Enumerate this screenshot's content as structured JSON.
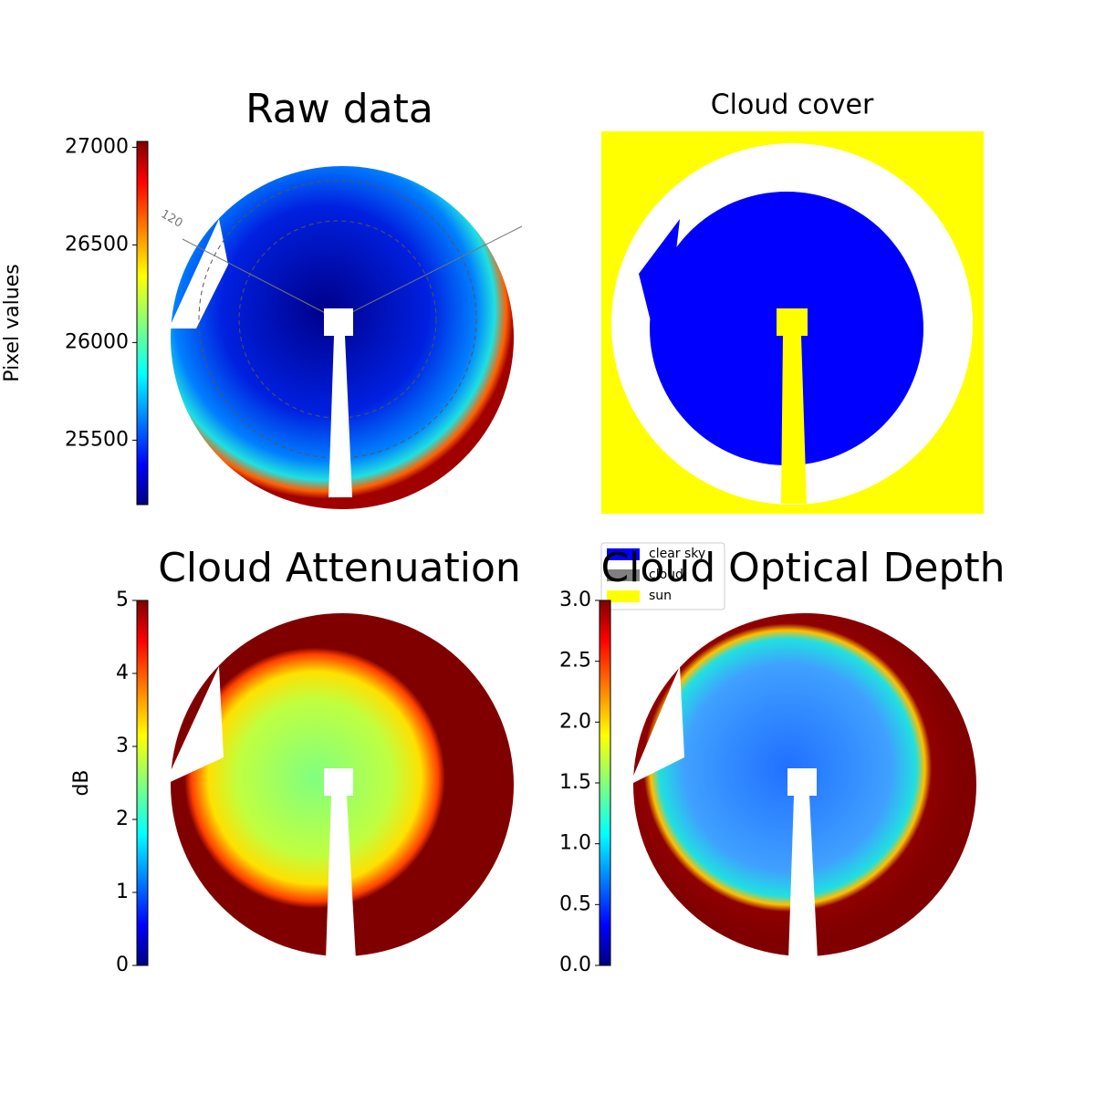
{
  "chart_data": [
    {
      "type": "image",
      "title": "Raw data",
      "annotations": [
        "120"
      ],
      "colorbar": {
        "label": "Pixel values",
        "lim": [
          25170,
          27030
        ],
        "ticks": [
          25500,
          26000,
          26500,
          27000
        ]
      }
    },
    {
      "type": "image",
      "title": "Cloud cover",
      "series": [
        {
          "name": "clear sky",
          "color": "#0000ff"
        },
        {
          "name": "cloud",
          "color": "#808080"
        },
        {
          "name": "sun",
          "color": "#ffff00"
        }
      ]
    },
    {
      "type": "image",
      "title": "Cloud Attenuation",
      "colorbar": {
        "label": "dB",
        "lim": [
          0,
          5
        ],
        "ticks": [
          0,
          1,
          2,
          3,
          4,
          5
        ]
      }
    },
    {
      "type": "image",
      "title": "Cloud Optical Depth",
      "colorbar": {
        "lim": [
          0,
          3
        ],
        "ticks": [
          {
            "value": 0,
            "label": "0.0"
          },
          {
            "value": 0.5,
            "label": "0.5"
          },
          {
            "value": 1,
            "label": "1.0"
          },
          {
            "value": 1.5,
            "label": "1.5"
          },
          {
            "value": 2,
            "label": "2.0"
          },
          {
            "value": 2.5,
            "label": "2.5"
          },
          {
            "value": 3,
            "label": "3.0"
          }
        ]
      }
    }
  ]
}
